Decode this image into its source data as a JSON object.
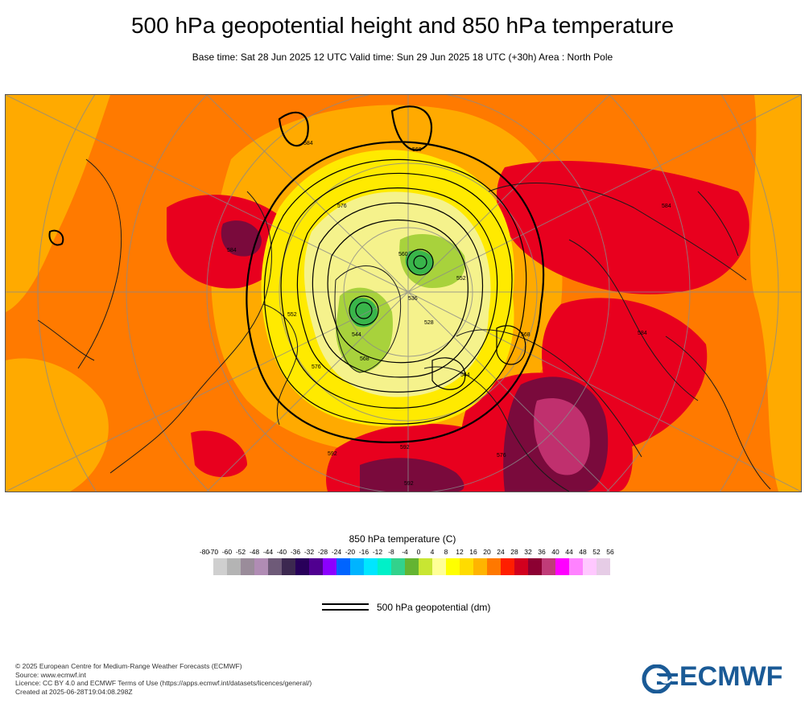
{
  "header": {
    "title": "500 hPa geopotential height and 850 hPa temperature",
    "subtitle": "Base time: Sat 28 Jun 2025 12 UTC Valid time: Sun 29 Jun 2025 18 UTC (+30h) Area : North Pole"
  },
  "map": {
    "area": "North Pole",
    "contour_labels": [
      "592",
      "584",
      "576",
      "568",
      "560",
      "552",
      "544",
      "536",
      "528",
      "584",
      "576",
      "592",
      "584",
      "576",
      "568",
      "560",
      "552",
      "544",
      "592",
      "584"
    ],
    "colors": {
      "background_field": "#ff7a00",
      "warm_core": "#e8001e",
      "hot_core": "#7a0a3c",
      "very_hot": "#c0306e",
      "mild": "#ffaa00",
      "cool_yellow": "#ffea00",
      "pale_yellow": "#f5f28c",
      "cold_green": "#a8d23c",
      "cold_core": "#39b54a",
      "coast": "#1a1a1a",
      "contour": "#000000",
      "graticule": "#8a8a8a"
    }
  },
  "legend": {
    "title": "850 hPa temperature (C)",
    "ticks": [
      "-80",
      "-70",
      "-60",
      "-52",
      "-48",
      "-44",
      "-40",
      "-36",
      "-32",
      "-28",
      "-24",
      "-20",
      "-16",
      "-12",
      "-8",
      "-4",
      "0",
      "4",
      "8",
      "12",
      "16",
      "20",
      "24",
      "28",
      "32",
      "36",
      "40",
      "44",
      "48",
      "52",
      "56"
    ],
    "colors": [
      "#e6e6e6",
      "#cfcfcf",
      "#b4b4b4",
      "#9a8c9a",
      "#b08cb4",
      "#6e5a78",
      "#3c2850",
      "#28005a",
      "#500090",
      "#8c00ff",
      "#0064ff",
      "#00b4ff",
      "#00e6ff",
      "#00f0c8",
      "#32d28c",
      "#64b432",
      "#c8e632",
      "#ffff96",
      "#ffff00",
      "#ffdc00",
      "#ffb400",
      "#ff7800",
      "#ff1e00",
      "#d2001e",
      "#8c0032",
      "#c03c78",
      "#ff00ff",
      "#ff82ff",
      "#ffc8ff",
      "#e6cce6",
      "#e6e6e6"
    ],
    "geopotential_label": "500 hPa geopotential (dm)"
  },
  "credits": {
    "line1": "© 2025 European Centre for Medium-Range Weather Forecasts (ECMWF)",
    "line2": "Source: www.ecmwf.int",
    "line3": "Licence: CC BY 4.0 and ECMWF Terms of Use (https://apps.ecmwf.int/datasets/licences/general/)",
    "line4": "Created at 2025-06-28T19:04:08.298Z"
  },
  "logo": {
    "text": "ECMWF",
    "color": "#1a5a96"
  }
}
